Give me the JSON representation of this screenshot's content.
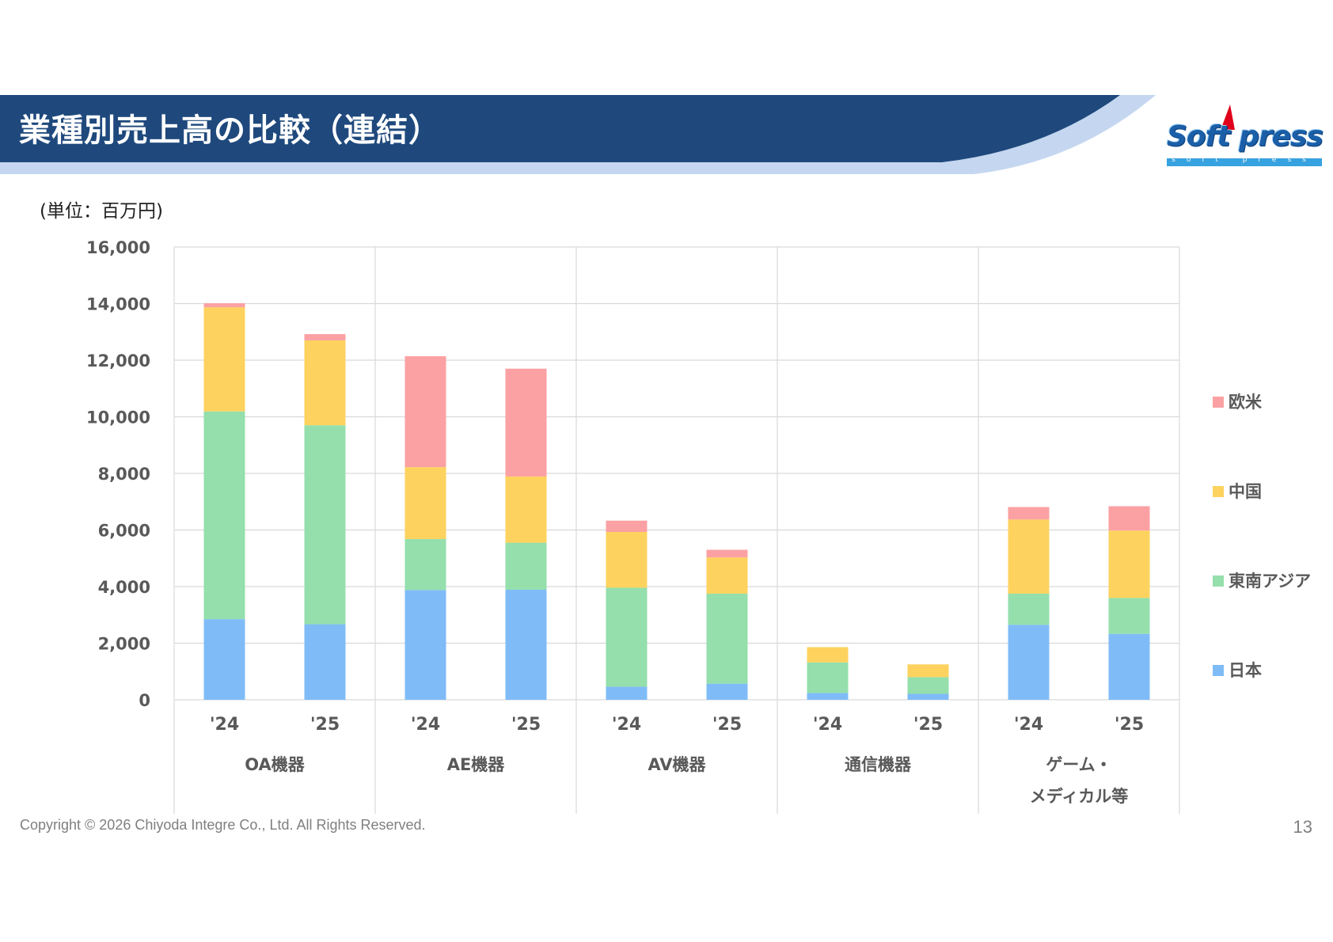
{
  "header": {
    "title": "業種別売上高の比較（連結）",
    "bar_color": "#1f497d",
    "accent_color": "#c5d7f0"
  },
  "logo": {
    "wordmark": "Soft press",
    "subline": "soft press"
  },
  "unit_label": "(単位：百万円)",
  "footer": {
    "copyright": "Copyright © 2026 Chiyoda Integre Co., Ltd. All Rights Reserved.",
    "page_number": "13"
  },
  "chart_data": {
    "type": "bar",
    "stacked": true,
    "title": "",
    "xlabel": "",
    "ylabel": "",
    "ylim": [
      0,
      16000
    ],
    "yticks": [
      0,
      2000,
      4000,
      6000,
      8000,
      10000,
      12000,
      14000,
      16000
    ],
    "ytick_labels": [
      "0",
      "2,000",
      "4,000",
      "6,000",
      "8,000",
      "10,000",
      "12,000",
      "14,000",
      "16,000"
    ],
    "grid": true,
    "groups": [
      "OA機器",
      "AE機器",
      "AV機器",
      "通信機器",
      "ゲーム・メディカル等"
    ],
    "group_label_lines": [
      [
        "OA機器"
      ],
      [
        "AE機器"
      ],
      [
        "AV機器"
      ],
      [
        "通信機器"
      ],
      [
        "ゲーム・",
        "メディカル等"
      ]
    ],
    "categories": [
      "'24",
      "'25",
      "'24",
      "'25",
      "'24",
      "'25",
      "'24",
      "'25",
      "'24",
      "'25"
    ],
    "legend_position": "right",
    "series": [
      {
        "name": "日本",
        "color": "#7fbcf7",
        "values": [
          2850,
          2670,
          3880,
          3890,
          460,
          570,
          240,
          210,
          2650,
          2330
        ]
      },
      {
        "name": "東南アジア",
        "color": "#94dfac",
        "values": [
          7340,
          7030,
          1800,
          1660,
          3500,
          3180,
          1080,
          590,
          1100,
          1270
        ]
      },
      {
        "name": "中国",
        "color": "#fdd25e",
        "values": [
          3680,
          3000,
          2540,
          2340,
          1970,
          1280,
          540,
          450,
          2620,
          2380
        ]
      },
      {
        "name": "欧米",
        "color": "#fba1a3",
        "values": [
          140,
          220,
          3920,
          3810,
          400,
          270,
          0,
          0,
          440,
          860
        ]
      }
    ]
  }
}
